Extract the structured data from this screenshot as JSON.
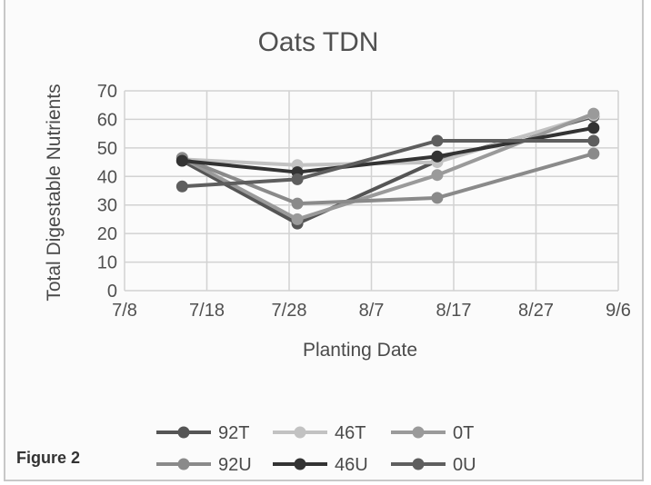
{
  "figure_label": "Figure 2",
  "chart_data": {
    "type": "line",
    "title": "Oats TDN",
    "xlabel": "Planting Date",
    "ylabel": "Total Digestable Nutrients",
    "x_ticks": [
      "7/8",
      "7/18",
      "7/28",
      "8/7",
      "8/17",
      "8/27",
      "9/6"
    ],
    "xlim": [
      "7/8",
      "9/6"
    ],
    "ylim": [
      0,
      70
    ],
    "y_ticks": [
      0,
      10,
      20,
      30,
      40,
      50,
      60,
      70
    ],
    "grid": true,
    "legend_position": "bottom",
    "x": [
      "7/15",
      "7/29",
      "8/15",
      "9/3"
    ],
    "series": [
      {
        "name": "92T",
        "color": "#555555",
        "values": [
          45.5,
          23.5,
          45.5,
          61
        ]
      },
      {
        "name": "46T",
        "color": "#c2c2c2",
        "values": [
          46,
          44,
          45,
          61.5
        ]
      },
      {
        "name": "0T",
        "color": "#9a9a9a",
        "values": [
          46.5,
          25,
          40.5,
          62
        ]
      },
      {
        "name": "92U",
        "color": "#8a8a8a",
        "values": [
          46.5,
          30.5,
          32.5,
          48
        ]
      },
      {
        "name": "46U",
        "color": "#333333",
        "values": [
          45.5,
          41.5,
          47,
          57
        ]
      },
      {
        "name": "0U",
        "color": "#5e5e5e",
        "values": [
          36.5,
          39,
          52.5,
          52.5
        ]
      }
    ]
  }
}
